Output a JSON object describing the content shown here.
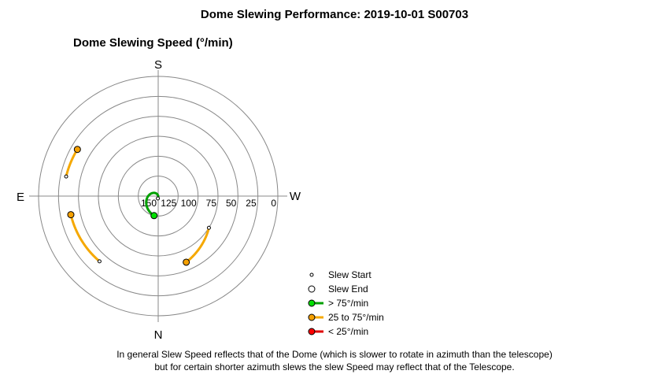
{
  "title": "Dome Slewing Performance: 2019-10-01 S00703",
  "chart_data": {
    "type": "polar",
    "title": "Dome Slewing Speed (°/min)",
    "direction_labels": {
      "top": "S",
      "bottom": "N",
      "left": "E",
      "right": "W"
    },
    "radial_ticks": [
      0,
      25,
      50,
      75,
      100,
      125,
      150
    ],
    "radial_tick_labels": [
      "0",
      "25",
      "50",
      "75",
      "100",
      "125",
      "150"
    ],
    "radial_range": [
      0,
      150
    ],
    "grid": true,
    "slews": [
      {
        "category": "> 75°/min",
        "start_speed": 153,
        "end_speed": 125,
        "start_angle": 82,
        "end_angle": 258,
        "direction": "ccw"
      },
      {
        "category": "25 to 75°/min",
        "start_speed": 40,
        "end_speed": 38,
        "start_angle": 228,
        "end_angle": 192,
        "direction": "cw"
      },
      {
        "category": "25 to 75°/min",
        "start_speed": 32,
        "end_speed": 33,
        "start_angle": 168,
        "end_angle": 150,
        "direction": "cw"
      },
      {
        "category": "25 to 75°/min",
        "start_speed": 75,
        "end_speed": 60,
        "start_angle": 328,
        "end_angle": 293,
        "direction": "cw"
      }
    ]
  },
  "legend": [
    {
      "key": "slew_start",
      "label": "Slew Start"
    },
    {
      "key": "slew_end",
      "label": "Slew End"
    },
    {
      "key": "fast",
      "label": "> 75°/min",
      "color": "#00a000",
      "marker": "#00e000"
    },
    {
      "key": "medium",
      "label": "25 to 75°/min",
      "color": "#f5a800",
      "marker": "#f5a000"
    },
    {
      "key": "slow",
      "label": "< 25°/min",
      "color": "#e00000",
      "marker": "#ff0000"
    }
  ],
  "footnote": {
    "line1": "In general Slew Speed reflects that of the Dome (which is slower to rotate in azimuth than the telescope)",
    "line2": "but for certain shorter azimuth slews the slew Speed may reflect that of the Telescope."
  }
}
